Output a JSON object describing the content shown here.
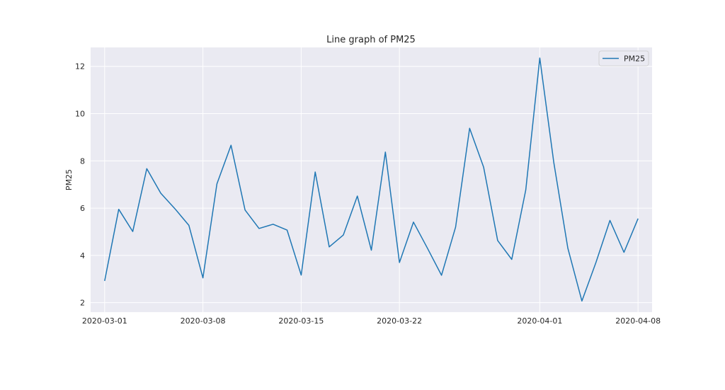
{
  "chart_data": {
    "type": "line",
    "title": "Line graph of PM25",
    "xlabel": "",
    "ylabel": "PM25",
    "x_tick_labels": [
      "2020-03-01",
      "2020-03-08",
      "2020-03-15",
      "2020-03-22",
      "2020-04-01",
      "2020-04-08"
    ],
    "y_ticks": [
      2,
      4,
      6,
      8,
      10,
      12
    ],
    "xlim": [
      "2020-02-29",
      "2020-04-09"
    ],
    "ylim": [
      1.6,
      12.8
    ],
    "grid": true,
    "legend_position": "top-right",
    "x": [
      "2020-03-01",
      "2020-03-02",
      "2020-03-03",
      "2020-03-04",
      "2020-03-05",
      "2020-03-06",
      "2020-03-07",
      "2020-03-08",
      "2020-03-09",
      "2020-03-10",
      "2020-03-11",
      "2020-03-12",
      "2020-03-13",
      "2020-03-14",
      "2020-03-15",
      "2020-03-16",
      "2020-03-17",
      "2020-03-18",
      "2020-03-19",
      "2020-03-20",
      "2020-03-21",
      "2020-03-22",
      "2020-03-23",
      "2020-03-24",
      "2020-03-25",
      "2020-03-26",
      "2020-03-27",
      "2020-03-28",
      "2020-03-29",
      "2020-03-30",
      "2020-03-31",
      "2020-04-01",
      "2020-04-02",
      "2020-04-03",
      "2020-04-04",
      "2020-04-05",
      "2020-04-06",
      "2020-04-07",
      "2020-04-08"
    ],
    "series": [
      {
        "name": "PM25",
        "color": "#1f77b4",
        "values": [
          2.92,
          5.95,
          5.01,
          7.67,
          6.63,
          5.98,
          5.27,
          3.05,
          7.03,
          8.66,
          5.92,
          5.14,
          5.32,
          5.07,
          3.17,
          7.53,
          4.36,
          4.86,
          6.51,
          4.22,
          8.37,
          3.7,
          5.41,
          4.3,
          3.16,
          5.2,
          9.38,
          7.73,
          4.63,
          3.83,
          6.77,
          12.35,
          7.93,
          4.31,
          2.07,
          3.7,
          5.48,
          4.13,
          5.56
        ]
      }
    ]
  },
  "colors": {
    "background": "#eaeaf2",
    "grid": "#ffffff",
    "line": "#1f77b4"
  }
}
